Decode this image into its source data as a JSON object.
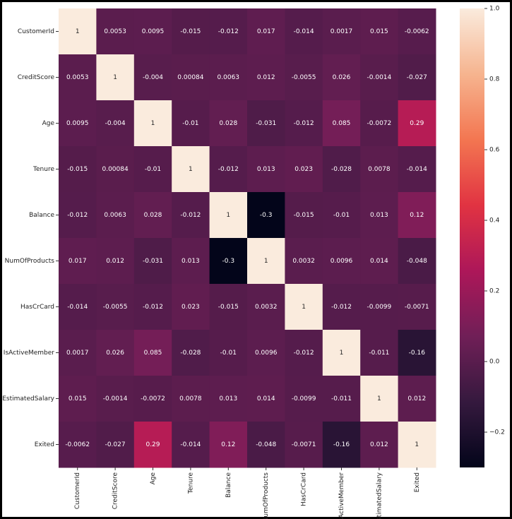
{
  "chart_data": {
    "type": "heatmap",
    "x_categories": [
      "CustomerId",
      "CreditScore",
      "Age",
      "Tenure",
      "Balance",
      "NumOfProducts",
      "HasCrCard",
      "IsActiveMember",
      "EstimatedSalary",
      "Exited"
    ],
    "y_categories": [
      "CustomerId",
      "CreditScore",
      "Age",
      "Tenure",
      "Balance",
      "NumOfProducts",
      "HasCrCard",
      "IsActiveMember",
      "EstimatedSalary",
      "Exited"
    ],
    "values": [
      [
        1,
        0.0053,
        0.0095,
        -0.015,
        -0.012,
        0.017,
        -0.014,
        0.0017,
        0.015,
        -0.0062
      ],
      [
        0.0053,
        1,
        -0.004,
        0.00084,
        0.0063,
        0.012,
        -0.0055,
        0.026,
        -0.0014,
        -0.027
      ],
      [
        0.0095,
        -0.004,
        1,
        -0.01,
        0.028,
        -0.031,
        -0.012,
        0.085,
        -0.0072,
        0.29
      ],
      [
        -0.015,
        0.00084,
        -0.01,
        1,
        -0.012,
        0.013,
        0.023,
        -0.028,
        0.0078,
        -0.014
      ],
      [
        -0.012,
        0.0063,
        0.028,
        -0.012,
        1,
        -0.3,
        -0.015,
        -0.01,
        0.013,
        0.12
      ],
      [
        0.017,
        0.012,
        -0.031,
        0.013,
        -0.3,
        1,
        0.0032,
        0.0096,
        0.014,
        -0.048
      ],
      [
        -0.014,
        -0.0055,
        -0.012,
        0.023,
        -0.015,
        0.0032,
        1,
        -0.012,
        -0.0099,
        -0.0071
      ],
      [
        0.0017,
        0.026,
        0.085,
        -0.028,
        -0.01,
        0.0096,
        -0.012,
        1,
        -0.011,
        -0.16
      ],
      [
        0.015,
        -0.0014,
        -0.0072,
        0.0078,
        0.013,
        0.014,
        -0.0099,
        -0.011,
        1,
        0.012
      ],
      [
        -0.0062,
        -0.027,
        0.29,
        -0.014,
        0.12,
        -0.048,
        -0.0071,
        -0.16,
        0.012,
        1
      ]
    ],
    "zlim": [
      -0.3,
      1
    ],
    "zticks": [
      {
        "value": -0.2,
        "label": "−0.2"
      },
      {
        "value": 0,
        "label": "0.0"
      },
      0.2,
      0.4,
      0.6,
      0.8,
      {
        "value": 1,
        "label": "1.0"
      }
    ],
    "colormap": [
      "#03051a",
      "#35193e",
      "#701f57",
      "#ad1759",
      "#e13342",
      "#f37651",
      "#f6b48f",
      "#faebdd"
    ]
  }
}
